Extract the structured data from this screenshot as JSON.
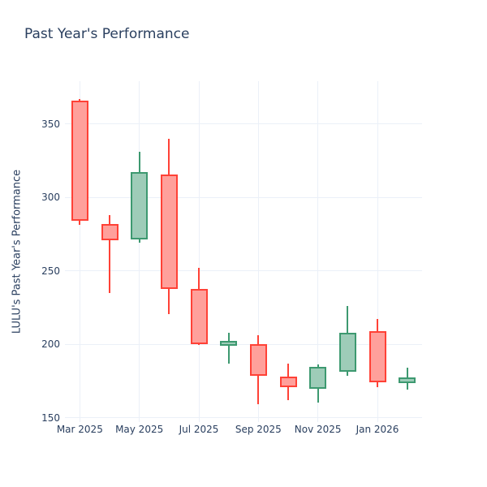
{
  "title": "Past Year's Performance",
  "y_axis": {
    "title": "LULU's Past Year's Performance",
    "tick_labels": [
      "150",
      "200",
      "250",
      "300",
      "350"
    ]
  },
  "x_axis": {
    "tick_labels": [
      "Mar 2025",
      "May 2025",
      "Jul 2025",
      "Sep 2025",
      "Nov 2025",
      "Jan 2026"
    ]
  },
  "colors": {
    "text": "#2a3f5f",
    "grid": "#ebf0f8",
    "background": "#ffffff",
    "increasing_line": "#3d9970",
    "increasing_fill": "#9eccb8",
    "decreasing_line": "#ff4136",
    "decreasing_fill": "#ffa09b"
  },
  "chart_data": {
    "type": "candlestick",
    "title": "Past Year's Performance",
    "ylabel": "LULU's Past Year's Performance",
    "x": [
      "Mar 2025",
      "Apr 2025",
      "May 2025",
      "Jun 2025",
      "Jul 2025",
      "Aug 2025",
      "Sep 2025",
      "Oct 2025",
      "Nov 2025",
      "Dec 2025",
      "Jan 2026",
      "Feb 2026"
    ],
    "open": [
      365.5,
      282.0,
      271.5,
      315.5,
      237.5,
      199.0,
      200.0,
      178.0,
      169.5,
      181.0,
      209.0,
      173.5
    ],
    "high": [
      367.0,
      288.0,
      331.0,
      340.0,
      252.0,
      207.5,
      206.0,
      186.5,
      186.0,
      226.0,
      217.0,
      184.0
    ],
    "low": [
      281.5,
      235.0,
      269.0,
      220.5,
      199.5,
      186.5,
      159.0,
      162.0,
      160.0,
      178.5,
      171.0,
      169.0
    ],
    "close": [
      284.0,
      270.5,
      317.0,
      237.5,
      200.0,
      202.5,
      178.5,
      170.5,
      184.5,
      208.0,
      174.0,
      177.5
    ],
    "y_ticks": [
      150,
      200,
      250,
      300,
      350
    ],
    "ylim": [
      147,
      379
    ],
    "grid": true,
    "legend": "none",
    "x_label_every": 2
  }
}
